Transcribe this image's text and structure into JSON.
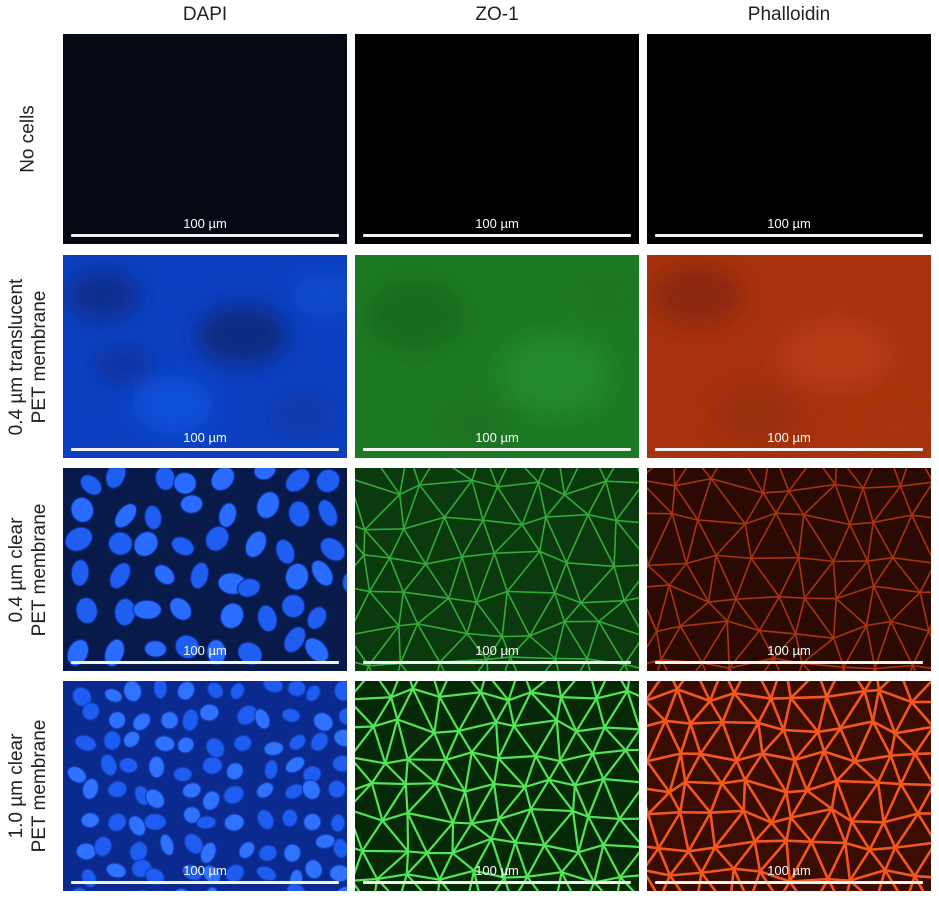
{
  "columns": [
    {
      "label": "DAPI"
    },
    {
      "label": "ZO-1"
    },
    {
      "label": "Phalloidin"
    }
  ],
  "rows": [
    {
      "line1": "No cells",
      "line2": ""
    },
    {
      "line1": "0.4 µm translucent",
      "line2": "PET membrane"
    },
    {
      "line1": "0.4 µm clear",
      "line2": "PET membrane"
    },
    {
      "line1": "1.0 µm clear",
      "line2": "PET membrane"
    }
  ],
  "scale_bar": {
    "label": "100 µm"
  },
  "colors": {
    "dapi": "#1c4fe0",
    "zo1": "#2fb52f",
    "phalloidin": "#e0461a",
    "background_dark": "#000000"
  }
}
